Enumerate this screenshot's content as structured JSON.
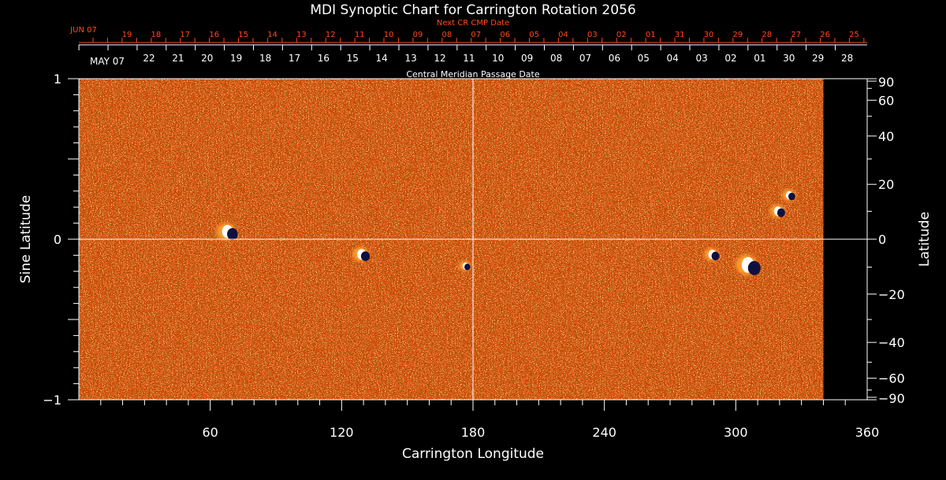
{
  "colors": {
    "background": "#000000",
    "map_base": "#e84a10",
    "map_grain_dark": "#a82000",
    "map_grain_light": "#ffa030",
    "positive_polarity": "#ffffff",
    "negative_polarity": "#101040",
    "next_cr_labels": "#ff4a1a",
    "axes": "#ffffff"
  },
  "chart_data": {
    "type": "heatmap",
    "title": "MDI Synoptic Chart for Carrington Rotation 2056",
    "xlabel": "Carrington Longitude",
    "ylabel_left": "Sine Latitude",
    "ylabel_right": "Latitude",
    "xlim": [
      0,
      360
    ],
    "ylim": [
      -1,
      1
    ],
    "x_ticks": [
      60,
      120,
      180,
      240,
      300,
      360
    ],
    "y_ticks_left": [
      {
        "value": 1,
        "label": "1"
      },
      {
        "value": 0,
        "label": "0"
      },
      {
        "value": -1,
        "label": "−1"
      }
    ],
    "y_ticks_right": [
      {
        "value": 90,
        "label": "90"
      },
      {
        "value": 60,
        "label": "60"
      },
      {
        "value": 40,
        "label": "40"
      },
      {
        "value": 20,
        "label": "20"
      },
      {
        "value": 0,
        "label": "0"
      },
      {
        "value": -20,
        "label": "−20"
      },
      {
        "value": -40,
        "label": "−40"
      },
      {
        "value": -60,
        "label": "−60"
      },
      {
        "value": -90,
        "label": "−90"
      }
    ],
    "data_extent_longitude": [
      0,
      340
    ],
    "crosshair": {
      "longitude": 180,
      "sine_latitude": 0
    },
    "top_axis": {
      "label": "Central Meridian Passage Date",
      "first_label": "MAY 07",
      "dates": [
        "22",
        "21",
        "20",
        "19",
        "18",
        "17",
        "16",
        "15",
        "14",
        "13",
        "12",
        "11",
        "10",
        "09",
        "08",
        "07",
        "06",
        "05",
        "04",
        "03",
        "02",
        "01",
        "30",
        "29",
        "28"
      ]
    },
    "next_cr_axis": {
      "label": "Next CR CMP Date",
      "first_label": "JUN 07",
      "dates": [
        "19",
        "18",
        "17",
        "16",
        "15",
        "14",
        "13",
        "12",
        "11",
        "10",
        "09",
        "08",
        "07",
        "06",
        "05",
        "04",
        "03",
        "02",
        "01",
        "31",
        "30",
        "29",
        "28",
        "27",
        "26",
        "25"
      ]
    },
    "active_regions": [
      {
        "longitude": 69,
        "sine_latitude": 0.04,
        "strength": 0.8
      },
      {
        "longitude": 130,
        "sine_latitude": -0.1,
        "strength": 0.6
      },
      {
        "longitude": 177,
        "sine_latitude": -0.17,
        "strength": 0.3
      },
      {
        "longitude": 290,
        "sine_latitude": -0.1,
        "strength": 0.5
      },
      {
        "longitude": 307,
        "sine_latitude": -0.17,
        "strength": 1.0
      },
      {
        "longitude": 320,
        "sine_latitude": 0.17,
        "strength": 0.5
      },
      {
        "longitude": 325,
        "sine_latitude": 0.27,
        "strength": 0.4
      }
    ]
  }
}
